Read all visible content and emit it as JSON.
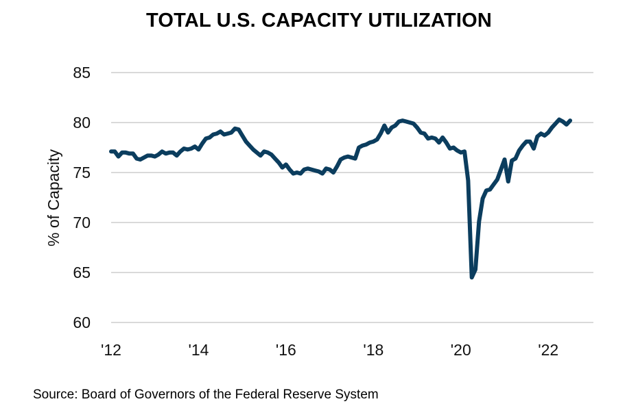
{
  "chart_data": {
    "type": "line",
    "title": "TOTAL U.S. CAPACITY UTILIZATION",
    "ylabel": "% of Capacity",
    "xlabel": "",
    "ylim": [
      60,
      85
    ],
    "yticks": [
      60,
      65,
      70,
      75,
      80,
      85
    ],
    "xticks": [
      {
        "date": "2012-01",
        "label": "'12"
      },
      {
        "date": "2014-01",
        "label": "'14"
      },
      {
        "date": "2016-01",
        "label": "'16"
      },
      {
        "date": "2018-01",
        "label": "'18"
      },
      {
        "date": "2020-01",
        "label": "'20"
      },
      {
        "date": "2022-01",
        "label": "'22"
      }
    ],
    "grid": "horizontal",
    "legend": "none",
    "line_color": "#0b3d5e",
    "grid_color": "#d9d9d9",
    "x_start": "2012-01",
    "x_frequency": "monthly",
    "values": [
      77.1,
      77.1,
      76.6,
      77.0,
      77.0,
      76.9,
      76.9,
      76.4,
      76.3,
      76.5,
      76.7,
      76.7,
      76.6,
      76.8,
      77.1,
      76.9,
      77.0,
      77.0,
      76.7,
      77.1,
      77.4,
      77.3,
      77.4,
      77.6,
      77.3,
      77.9,
      78.4,
      78.5,
      78.8,
      78.9,
      79.1,
      78.8,
      78.9,
      79.0,
      79.4,
      79.3,
      78.7,
      78.1,
      77.7,
      77.3,
      77.0,
      76.7,
      77.1,
      77.0,
      76.8,
      76.4,
      76.0,
      75.5,
      75.8,
      75.3,
      74.9,
      75.0,
      74.9,
      75.3,
      75.4,
      75.3,
      75.2,
      75.1,
      74.9,
      75.4,
      75.3,
      75.0,
      75.6,
      76.3,
      76.5,
      76.6,
      76.5,
      76.4,
      77.5,
      77.7,
      77.8,
      78.0,
      78.1,
      78.3,
      78.9,
      79.7,
      79.0,
      79.5,
      79.7,
      80.1,
      80.2,
      80.1,
      80.0,
      79.9,
      79.5,
      79.0,
      78.9,
      78.4,
      78.5,
      78.4,
      78.0,
      78.5,
      78.0,
      77.4,
      77.5,
      77.2,
      77.0,
      77.1,
      74.2,
      64.5,
      65.3,
      70.1,
      72.4,
      73.2,
      73.3,
      73.8,
      74.3,
      75.3,
      76.3,
      74.1,
      76.2,
      76.4,
      77.2,
      77.7,
      78.1,
      78.1,
      77.4,
      78.6,
      78.9,
      78.7,
      79.0,
      79.5,
      79.9,
      80.3,
      80.1,
      79.8,
      80.2
    ]
  },
  "source": "Source: Board of Governors of the Federal Reserve System"
}
